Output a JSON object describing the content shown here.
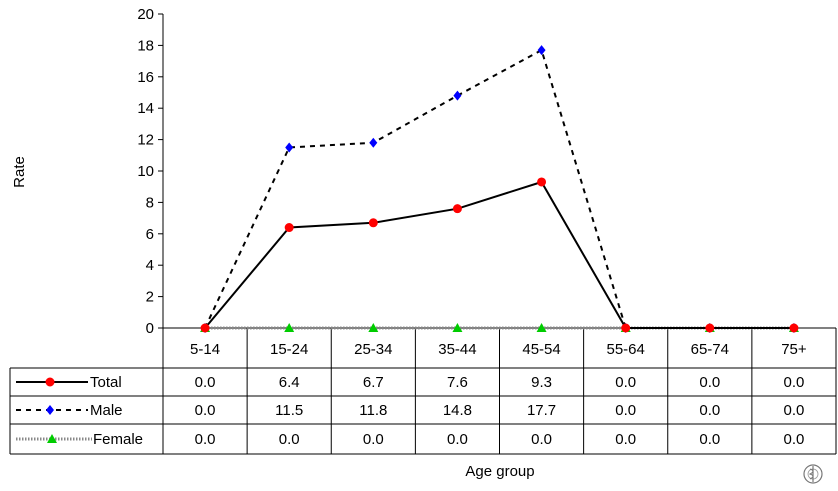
{
  "chart_data": {
    "type": "line",
    "xlabel": "Age group",
    "ylabel": "Rate",
    "ylim": [
      0,
      20
    ],
    "yticks": [
      0,
      2,
      4,
      6,
      8,
      10,
      12,
      14,
      16,
      18,
      20
    ],
    "grid": false,
    "legend": "data table rows below chart",
    "categories": [
      "5-14",
      "15-24",
      "25-34",
      "35-44",
      "45-54",
      "55-64",
      "65-74",
      "75+"
    ],
    "series": [
      {
        "name": "Total",
        "values": [
          0.0,
          6.4,
          6.7,
          7.6,
          9.3,
          0.0,
          0.0,
          0.0
        ],
        "labels": [
          "0.0",
          "6.4",
          "6.7",
          "7.6",
          "9.3",
          "0.0",
          "0.0",
          "0.0"
        ],
        "color": "#ff0000",
        "line": "solid",
        "marker": "circle"
      },
      {
        "name": "Male",
        "values": [
          0.0,
          11.5,
          11.8,
          14.8,
          17.7,
          0.0,
          0.0,
          0.0
        ],
        "labels": [
          "0.0",
          "11.5",
          "11.8",
          "14.8",
          "17.7",
          "0.0",
          "0.0",
          "0.0"
        ],
        "color": "#0000ff",
        "line": "dashed",
        "marker": "diamond"
      },
      {
        "name": "Female",
        "values": [
          0.0,
          0.0,
          0.0,
          0.0,
          0.0,
          0.0,
          0.0,
          0.0
        ],
        "labels": [
          "0.0",
          "0.0",
          "0.0",
          "0.0",
          "0.0",
          "0.0",
          "0.0",
          "0.0"
        ],
        "color": "#00cc00",
        "line": "dotted",
        "marker": "triangle"
      }
    ]
  },
  "logo": "who-emblem-icon"
}
